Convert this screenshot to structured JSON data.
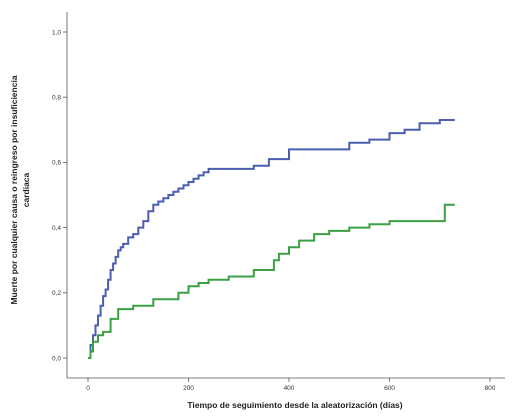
{
  "chart_data": {
    "type": "line",
    "title": "",
    "xlabel": "Tiempo de seguimiento desde la aleatorización (días)",
    "ylabel_lines": [
      "Muerte por cualquier causa o reingreso por insuficiencia",
      "cardiaca"
    ],
    "xlim": [
      0,
      800
    ],
    "ylim": [
      0,
      1.0
    ],
    "x_ticks": [
      0,
      200,
      400,
      600,
      800
    ],
    "x_tick_labels": [
      "0",
      "200",
      "400",
      "600",
      "800"
    ],
    "y_ticks": [
      0,
      0.2,
      0.4,
      0.6,
      0.8,
      1.0
    ],
    "y_tick_labels": [
      "0,0",
      "0,2",
      "0,4",
      "0,6",
      "0,8",
      "1,0"
    ],
    "grid": false,
    "legend": "none",
    "series": [
      {
        "color": "#4a5fb0",
        "step": true,
        "x": [
          0,
          5,
          10,
          15,
          20,
          25,
          30,
          35,
          40,
          45,
          50,
          55,
          60,
          65,
          70,
          80,
          90,
          100,
          110,
          120,
          130,
          140,
          150,
          160,
          170,
          180,
          190,
          200,
          210,
          220,
          230,
          240,
          250,
          280,
          300,
          330,
          360,
          400,
          440,
          480,
          520,
          560,
          600,
          630,
          660,
          700,
          730
        ],
        "y": [
          0,
          0.04,
          0.07,
          0.1,
          0.13,
          0.16,
          0.19,
          0.21,
          0.24,
          0.27,
          0.29,
          0.31,
          0.33,
          0.34,
          0.35,
          0.37,
          0.38,
          0.4,
          0.42,
          0.45,
          0.47,
          0.48,
          0.49,
          0.5,
          0.51,
          0.52,
          0.53,
          0.54,
          0.55,
          0.56,
          0.57,
          0.58,
          0.58,
          0.58,
          0.58,
          0.59,
          0.61,
          0.64,
          0.64,
          0.64,
          0.66,
          0.67,
          0.69,
          0.7,
          0.72,
          0.73,
          0.73
        ]
      },
      {
        "color": "#3aa043",
        "step": true,
        "x": [
          0,
          5,
          10,
          20,
          30,
          45,
          60,
          90,
          130,
          180,
          200,
          220,
          240,
          280,
          330,
          370,
          380,
          400,
          420,
          450,
          480,
          520,
          560,
          600,
          650,
          700,
          710,
          730
        ],
        "y": [
          0,
          0.02,
          0.05,
          0.07,
          0.08,
          0.12,
          0.15,
          0.16,
          0.18,
          0.2,
          0.22,
          0.23,
          0.24,
          0.25,
          0.27,
          0.3,
          0.32,
          0.34,
          0.36,
          0.38,
          0.39,
          0.4,
          0.41,
          0.42,
          0.42,
          0.42,
          0.47,
          0.47
        ]
      }
    ]
  }
}
